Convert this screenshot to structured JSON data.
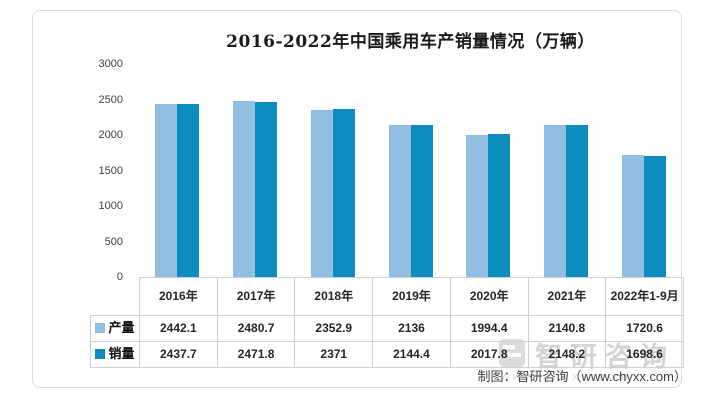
{
  "chart_data": {
    "type": "bar",
    "title": "2016-2022年中国乘用车产销量情况（万辆）",
    "categories": [
      "2016年",
      "2017年",
      "2018年",
      "2019年",
      "2020年",
      "2021年",
      "2022年1-9月"
    ],
    "series": [
      {
        "name": "产量",
        "color": "#92BEE1",
        "values": [
          2442.1,
          2480.7,
          2352.9,
          2136,
          1994.4,
          2140.8,
          1720.6
        ]
      },
      {
        "name": "销量",
        "color": "#0C8CBF",
        "values": [
          2437.7,
          2471.8,
          2371,
          2144.4,
          2017.8,
          2148.2,
          1698.6
        ]
      }
    ],
    "ylim": [
      0,
      3000
    ],
    "yticks": [
      0,
      500,
      1000,
      1500,
      2000,
      2500,
      3000
    ],
    "grid": false,
    "legend_position": "table-left",
    "data_table_shown": true
  },
  "watermark": {
    "brand": "智研咨询",
    "url": "www.chyxx.com"
  },
  "credit": "制图：智研咨询（www.chyxx.com）",
  "colors": {
    "production_bar": "#92BEE1",
    "sales_bar": "#0C8CBF",
    "frame_border": "#dcdcdc",
    "table_border": "#cfcfcf",
    "title_text": "#1b1b1b"
  }
}
